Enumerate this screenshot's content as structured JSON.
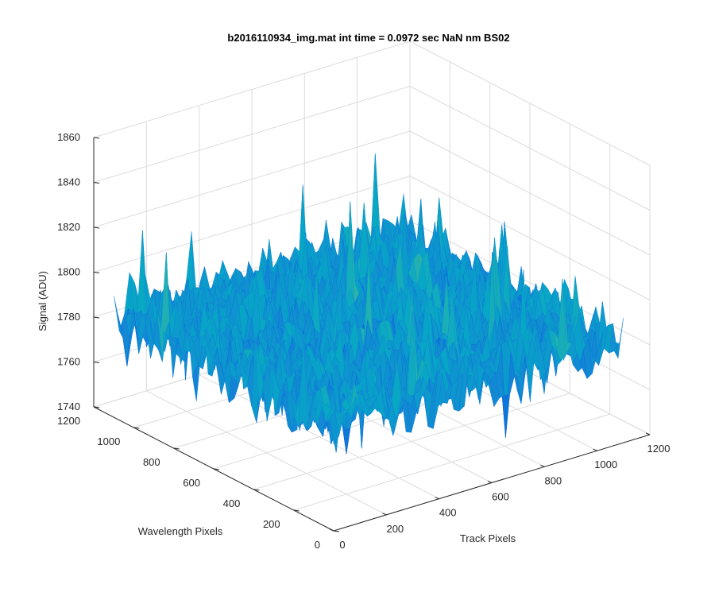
{
  "chart_data": {
    "type": "surface",
    "title": "b2016110934_img.mat int time = 0.0972 sec  NaN nm BS02",
    "xlabel": "Track Pixels",
    "ylabel": "Wavelength Pixels",
    "zlabel": "Signal (ADU)",
    "xlim": [
      0,
      1200
    ],
    "ylim": [
      0,
      1200
    ],
    "zlim": [
      1740,
      1860
    ],
    "xticks": [
      "0",
      "200",
      "400",
      "600",
      "800",
      "1000",
      "1200"
    ],
    "yticks": [
      "0",
      "200",
      "400",
      "600",
      "800",
      "1000",
      "1200"
    ],
    "zticks": [
      "1740",
      "1760",
      "1780",
      "1800",
      "1820",
      "1840",
      "1860"
    ],
    "data_extent": {
      "x": [
        1,
        1100
      ],
      "y": [
        1,
        1100
      ]
    },
    "signal": {
      "mean": 1785,
      "min": 1745,
      "max": 1850
    },
    "grid": true,
    "colormap": "parula"
  }
}
